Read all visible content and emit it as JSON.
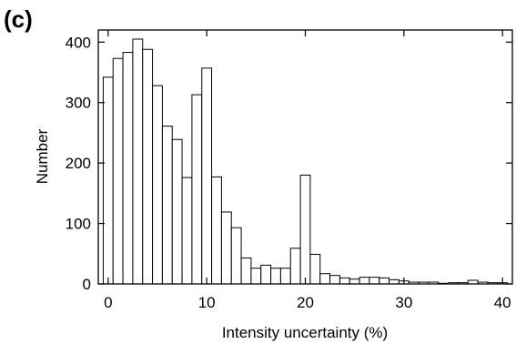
{
  "panel_label": "(c)",
  "chart_data": {
    "type": "bar",
    "xlabel": "Intensity uncertainty (%)",
    "ylabel": "Number",
    "xlim": [
      -1,
      41
    ],
    "ylim": [
      0,
      420
    ],
    "bin_width": 1,
    "x_ticks": [
      0,
      10,
      20,
      30,
      40
    ],
    "y_ticks": [
      0,
      100,
      200,
      300,
      400
    ],
    "grid": false,
    "x": [
      0,
      1,
      2,
      3,
      4,
      5,
      6,
      7,
      8,
      9,
      10,
      11,
      12,
      13,
      14,
      15,
      16,
      17,
      18,
      19,
      20,
      21,
      22,
      23,
      24,
      25,
      26,
      27,
      28,
      29,
      30,
      31,
      32,
      33,
      34,
      35,
      36,
      37,
      38,
      39,
      40
    ],
    "values": [
      342,
      373,
      383,
      405,
      388,
      328,
      261,
      239,
      176,
      313,
      357,
      177,
      119,
      93,
      43,
      26,
      31,
      26,
      26,
      59,
      180,
      49,
      17,
      14,
      10,
      8,
      11,
      11,
      10,
      7,
      5,
      3,
      3,
      3,
      1,
      2,
      2,
      6,
      3,
      2,
      2
    ]
  }
}
